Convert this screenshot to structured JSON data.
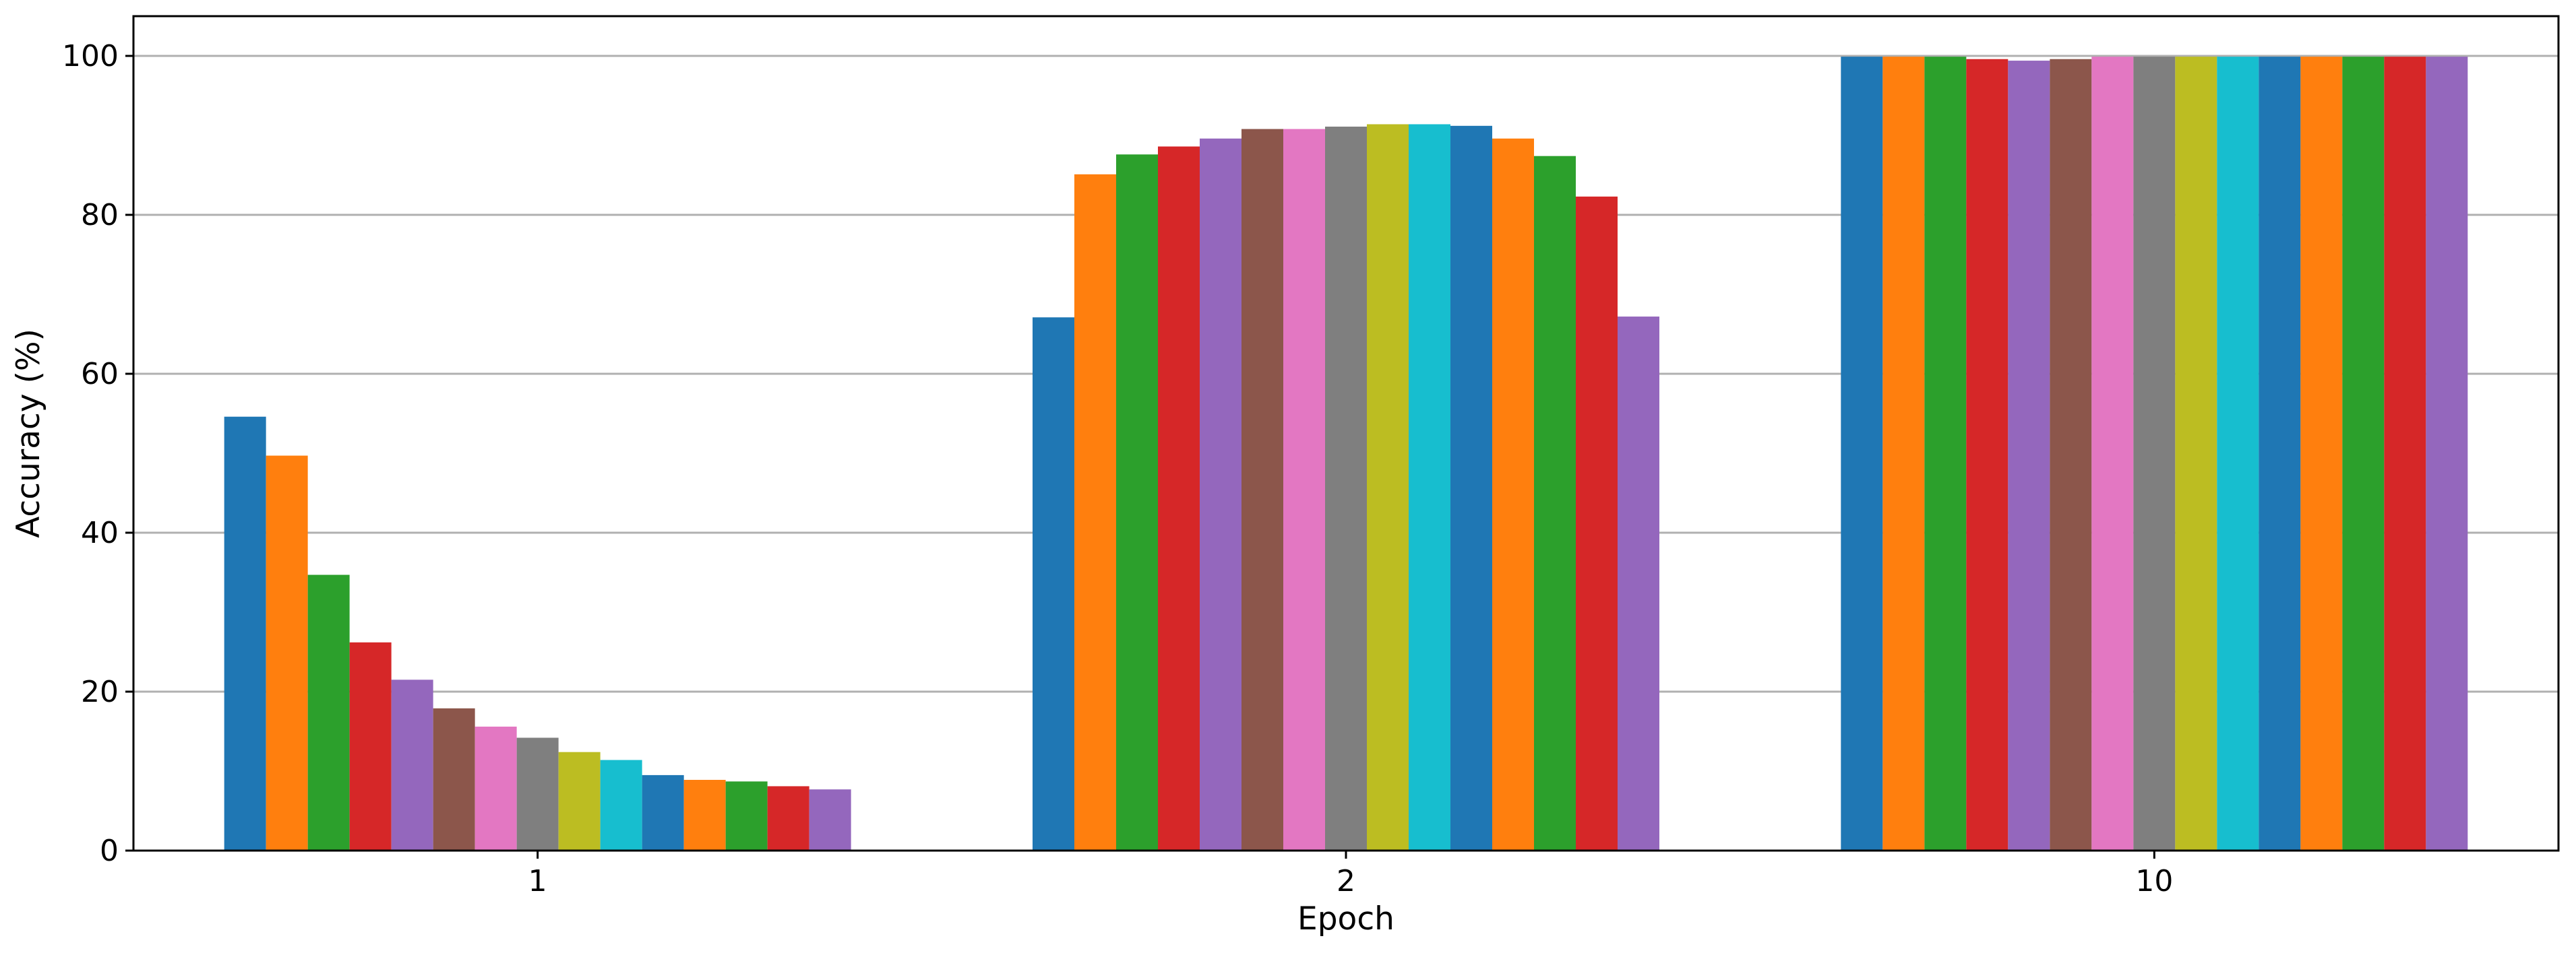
{
  "chart_data": {
    "type": "bar",
    "title": "",
    "xlabel": "Epoch",
    "ylabel": "Accuracy (%)",
    "categories": [
      "1",
      "2",
      "10"
    ],
    "ylim": [
      0,
      105
    ],
    "yticks": [
      0,
      20,
      40,
      60,
      80,
      100
    ],
    "grid": "y-major",
    "legend": "none",
    "colors": [
      "#1f77b4",
      "#ff7f0e",
      "#2ca02c",
      "#d62728",
      "#9467bd",
      "#8c564b",
      "#e377c2",
      "#7f7f7f",
      "#bcbd22",
      "#17becf",
      "#1f77b4",
      "#ff7f0e",
      "#2ca02c",
      "#d62728",
      "#9467bd"
    ],
    "series": [
      {
        "values": [
          54.6,
          67.1,
          99.9
        ]
      },
      {
        "values": [
          49.7,
          85.1,
          99.9
        ]
      },
      {
        "values": [
          34.7,
          87.6,
          99.9
        ]
      },
      {
        "values": [
          26.2,
          88.6,
          99.6
        ]
      },
      {
        "values": [
          21.5,
          89.6,
          99.4
        ]
      },
      {
        "values": [
          17.9,
          90.8,
          99.6
        ]
      },
      {
        "values": [
          15.6,
          90.8,
          99.9
        ]
      },
      {
        "values": [
          14.2,
          91.1,
          99.9
        ]
      },
      {
        "values": [
          12.4,
          91.4,
          99.9
        ]
      },
      {
        "values": [
          11.4,
          91.4,
          99.9
        ]
      },
      {
        "values": [
          9.5,
          91.2,
          99.9
        ]
      },
      {
        "values": [
          8.9,
          89.6,
          99.9
        ]
      },
      {
        "values": [
          8.7,
          87.4,
          99.9
        ]
      },
      {
        "values": [
          8.1,
          82.3,
          99.9
        ]
      },
      {
        "values": [
          7.7,
          67.2,
          99.9
        ]
      }
    ]
  }
}
